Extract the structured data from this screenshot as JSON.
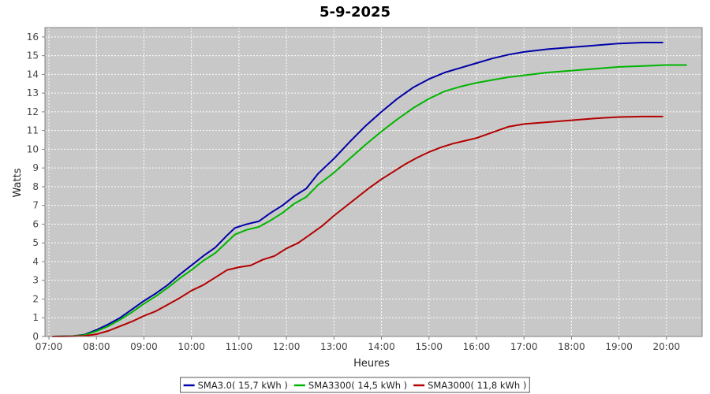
{
  "chart_data": {
    "type": "line",
    "title": "5-9-2025",
    "xlabel": "Heures",
    "ylabel": "Watts",
    "xlim": [
      "06:55",
      "20:45"
    ],
    "ylim": [
      0,
      16.5
    ],
    "x_ticks": [
      "07:00",
      "08:00",
      "09:00",
      "10:00",
      "11:00",
      "12:00",
      "13:00",
      "14:00",
      "15:00",
      "16:00",
      "17:00",
      "18:00",
      "19:00",
      "20:00"
    ],
    "y_ticks": [
      0,
      1,
      2,
      3,
      4,
      5,
      6,
      7,
      8,
      9,
      10,
      11,
      12,
      13,
      14,
      15,
      16
    ],
    "grid": true,
    "legend_position": "bottom-center",
    "background_color": "#c8c8c8",
    "series": [
      {
        "name": "SMA3.0( 15,7 kWh )",
        "color": "#0000a8",
        "points": [
          [
            "07:05",
            0
          ],
          [
            "07:30",
            0.02
          ],
          [
            "07:45",
            0.1
          ],
          [
            "08:00",
            0.35
          ],
          [
            "08:15",
            0.65
          ],
          [
            "08:30",
            1.0
          ],
          [
            "08:45",
            1.45
          ],
          [
            "09:00",
            1.9
          ],
          [
            "09:15",
            2.3
          ],
          [
            "09:30",
            2.75
          ],
          [
            "09:45",
            3.3
          ],
          [
            "10:00",
            3.8
          ],
          [
            "10:15",
            4.3
          ],
          [
            "10:30",
            4.75
          ],
          [
            "10:45",
            5.4
          ],
          [
            "10:55",
            5.8
          ],
          [
            "11:10",
            6.0
          ],
          [
            "11:25",
            6.15
          ],
          [
            "11:40",
            6.6
          ],
          [
            "11:55",
            7.0
          ],
          [
            "12:10",
            7.5
          ],
          [
            "12:25",
            7.9
          ],
          [
            "12:40",
            8.7
          ],
          [
            "13:00",
            9.5
          ],
          [
            "13:20",
            10.4
          ],
          [
            "13:40",
            11.25
          ],
          [
            "14:00",
            12.0
          ],
          [
            "14:20",
            12.7
          ],
          [
            "14:40",
            13.3
          ],
          [
            "15:00",
            13.75
          ],
          [
            "15:20",
            14.1
          ],
          [
            "15:40",
            14.35
          ],
          [
            "16:00",
            14.6
          ],
          [
            "16:20",
            14.85
          ],
          [
            "16:40",
            15.05
          ],
          [
            "17:00",
            15.2
          ],
          [
            "17:30",
            15.35
          ],
          [
            "18:00",
            15.45
          ],
          [
            "18:30",
            15.55
          ],
          [
            "19:00",
            15.65
          ],
          [
            "19:30",
            15.7
          ],
          [
            "19:55",
            15.7
          ]
        ]
      },
      {
        "name": "SMA3300( 14,5 kWh )",
        "color": "#00b400",
        "points": [
          [
            "07:05",
            0
          ],
          [
            "07:30",
            0.02
          ],
          [
            "07:45",
            0.08
          ],
          [
            "08:00",
            0.28
          ],
          [
            "08:15",
            0.55
          ],
          [
            "08:30",
            0.9
          ],
          [
            "08:45",
            1.3
          ],
          [
            "09:00",
            1.75
          ],
          [
            "09:15",
            2.15
          ],
          [
            "09:30",
            2.6
          ],
          [
            "09:45",
            3.1
          ],
          [
            "10:00",
            3.55
          ],
          [
            "10:15",
            4.05
          ],
          [
            "10:30",
            4.45
          ],
          [
            "10:45",
            5.05
          ],
          [
            "10:55",
            5.45
          ],
          [
            "11:10",
            5.7
          ],
          [
            "11:25",
            5.85
          ],
          [
            "11:40",
            6.2
          ],
          [
            "11:55",
            6.6
          ],
          [
            "12:10",
            7.1
          ],
          [
            "12:25",
            7.45
          ],
          [
            "12:40",
            8.1
          ],
          [
            "13:00",
            8.75
          ],
          [
            "13:20",
            9.5
          ],
          [
            "13:40",
            10.25
          ],
          [
            "14:00",
            10.95
          ],
          [
            "14:20",
            11.6
          ],
          [
            "14:40",
            12.2
          ],
          [
            "15:00",
            12.7
          ],
          [
            "15:20",
            13.1
          ],
          [
            "15:40",
            13.35
          ],
          [
            "16:00",
            13.55
          ],
          [
            "16:20",
            13.7
          ],
          [
            "16:40",
            13.85
          ],
          [
            "17:00",
            13.95
          ],
          [
            "17:30",
            14.1
          ],
          [
            "18:00",
            14.2
          ],
          [
            "18:30",
            14.3
          ],
          [
            "19:00",
            14.4
          ],
          [
            "19:30",
            14.45
          ],
          [
            "20:00",
            14.5
          ],
          [
            "20:25",
            14.5
          ]
        ]
      },
      {
        "name": "SMA3000( 11,8 kWh )",
        "color": "#b40000",
        "points": [
          [
            "07:05",
            0
          ],
          [
            "07:30",
            0.01
          ],
          [
            "07:45",
            0.03
          ],
          [
            "08:00",
            0.12
          ],
          [
            "08:15",
            0.3
          ],
          [
            "08:30",
            0.55
          ],
          [
            "08:45",
            0.8
          ],
          [
            "09:00",
            1.1
          ],
          [
            "09:15",
            1.35
          ],
          [
            "09:30",
            1.7
          ],
          [
            "09:45",
            2.05
          ],
          [
            "10:00",
            2.45
          ],
          [
            "10:15",
            2.75
          ],
          [
            "10:30",
            3.15
          ],
          [
            "10:45",
            3.55
          ],
          [
            "11:00",
            3.7
          ],
          [
            "11:15",
            3.8
          ],
          [
            "11:30",
            4.1
          ],
          [
            "11:45",
            4.3
          ],
          [
            "12:00",
            4.7
          ],
          [
            "12:15",
            5.0
          ],
          [
            "12:30",
            5.45
          ],
          [
            "12:45",
            5.9
          ],
          [
            "13:00",
            6.45
          ],
          [
            "13:15",
            6.95
          ],
          [
            "13:30",
            7.45
          ],
          [
            "13:45",
            7.95
          ],
          [
            "14:00",
            8.4
          ],
          [
            "14:15",
            8.8
          ],
          [
            "14:30",
            9.2
          ],
          [
            "14:45",
            9.55
          ],
          [
            "15:00",
            9.85
          ],
          [
            "15:15",
            10.1
          ],
          [
            "15:30",
            10.3
          ],
          [
            "15:45",
            10.45
          ],
          [
            "16:00",
            10.6
          ],
          [
            "16:20",
            10.9
          ],
          [
            "16:40",
            11.2
          ],
          [
            "17:00",
            11.35
          ],
          [
            "17:30",
            11.45
          ],
          [
            "18:00",
            11.55
          ],
          [
            "18:30",
            11.65
          ],
          [
            "19:00",
            11.72
          ],
          [
            "19:30",
            11.75
          ],
          [
            "19:55",
            11.75
          ]
        ]
      }
    ]
  }
}
